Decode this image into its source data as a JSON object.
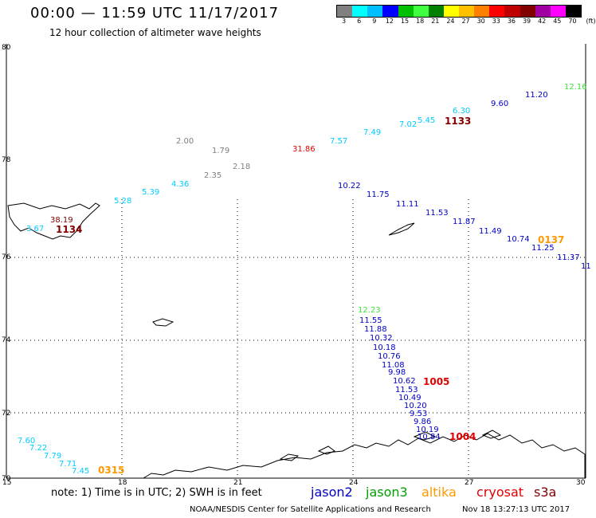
{
  "header": {
    "title": "00:00 — 11:59 UTC 11/17/2017",
    "subtitle": "12 hour collection of altimeter wave heights"
  },
  "legend": {
    "colors": [
      "#808080",
      "#00ffff",
      "#00bfff",
      "#0000ff",
      "#00c000",
      "#40ff40",
      "#008000",
      "#ffff00",
      "#ffc000",
      "#ff8000",
      "#ff0000",
      "#c00000",
      "#800000",
      "#a000a0",
      "#ff00ff",
      "#000000"
    ],
    "ticks": [
      "3",
      "6",
      "9",
      "12",
      "15",
      "18",
      "21",
      "24",
      "27",
      "30",
      "33",
      "36",
      "39",
      "42",
      "45",
      "70",
      "(ft)"
    ]
  },
  "axes": {
    "x_labels": [
      "15",
      "18",
      "21",
      "24",
      "27",
      "30"
    ],
    "y_labels": [
      "80",
      "78",
      "76",
      "74",
      "72",
      "70"
    ]
  },
  "map_data": {
    "colors": {
      "jason2": "#0000c8",
      "jason3": "#00a000",
      "altika": "#ff9900",
      "cryosat": "#e00000",
      "s3a": "#800000",
      "gray": "#808080",
      "cyan": "#00ccff",
      "lightgreen": "#40e040"
    },
    "labels": [
      {
        "t": "2.00",
        "c": "gray"
      },
      {
        "t": "1.79",
        "c": "gray"
      },
      {
        "t": "2.35",
        "c": "gray"
      },
      {
        "t": "2.18",
        "c": "gray"
      },
      {
        "t": "5.28",
        "c": "cyan"
      },
      {
        "t": "5.39",
        "c": "cyan"
      },
      {
        "t": "4.36",
        "c": "cyan"
      },
      {
        "t": "3.67",
        "c": "cyan"
      },
      {
        "t": "7.57",
        "c": "cyan"
      },
      {
        "t": "7.49",
        "c": "cyan"
      },
      {
        "t": "7.02",
        "c": "cyan"
      },
      {
        "t": "5.45",
        "c": "cyan"
      },
      {
        "t": "6.30",
        "c": "cyan"
      },
      {
        "t": "31.86",
        "c": "cryosat"
      },
      {
        "t": "38.19",
        "c": "s3a"
      },
      {
        "t": "9.60",
        "c": "jason2"
      },
      {
        "t": "11.20",
        "c": "jason2"
      },
      {
        "t": "12.16",
        "c": "lightgreen"
      },
      {
        "t": "10.22",
        "c": "jason2"
      },
      {
        "t": "11.75",
        "c": "jason2"
      },
      {
        "t": "11.11",
        "c": "jason2"
      },
      {
        "t": "11.53",
        "c": "jason2"
      },
      {
        "t": "11.87",
        "c": "jason2"
      },
      {
        "t": "11.49",
        "c": "jason2"
      },
      {
        "t": "10.74",
        "c": "jason2"
      },
      {
        "t": "11.25",
        "c": "jason2"
      },
      {
        "t": "11.37",
        "c": "jason2"
      },
      {
        "t": "11",
        "c": "jason2"
      },
      {
        "t": "12.23",
        "c": "lightgreen"
      },
      {
        "t": "11.55",
        "c": "jason2"
      },
      {
        "t": "11.88",
        "c": "jason2"
      },
      {
        "t": "10.32",
        "c": "jason2"
      },
      {
        "t": "10.18",
        "c": "jason2"
      },
      {
        "t": "10.76",
        "c": "jason2"
      },
      {
        "t": "11.08",
        "c": "jason2"
      },
      {
        "t": "9.98",
        "c": "jason2"
      },
      {
        "t": "10.62",
        "c": "jason2"
      },
      {
        "t": "11.53",
        "c": "jason2"
      },
      {
        "t": "10.49",
        "c": "jason2"
      },
      {
        "t": "10.20",
        "c": "jason2"
      },
      {
        "t": "9.53",
        "c": "jason2"
      },
      {
        "t": "9.86",
        "c": "jason2"
      },
      {
        "t": "10.19",
        "c": "jason2"
      },
      {
        "t": "10.84",
        "c": "jason2"
      },
      {
        "t": "7.60",
        "c": "cyan"
      },
      {
        "t": "7.22",
        "c": "cyan"
      },
      {
        "t": "7.79",
        "c": "cyan"
      },
      {
        "t": "7.71",
        "c": "cyan"
      },
      {
        "t": "7.45",
        "c": "cyan"
      }
    ],
    "pass_times": [
      {
        "t": "1133",
        "c": "s3a"
      },
      {
        "t": "1134",
        "c": "s3a"
      },
      {
        "t": "0137",
        "c": "altika"
      },
      {
        "t": "1005",
        "c": "cryosat"
      },
      {
        "t": "1004",
        "c": "cryosat"
      },
      {
        "t": "0315",
        "c": "altika"
      }
    ]
  },
  "footer": {
    "note": "note: 1) Time is in UTC; 2) SWH is in feet",
    "satellites": [
      {
        "name": "jason2",
        "c": "jason2"
      },
      {
        "name": "jason3",
        "c": "jason3"
      },
      {
        "name": "altika",
        "c": "altika"
      },
      {
        "name": "cryosat",
        "c": "cryosat"
      },
      {
        "name": "s3a",
        "c": "s3a"
      }
    ],
    "credit": "NOAA/NESDIS Center for Satellite Applications and Research",
    "timestamp": "Nov 18 13:27:13 UTC 2017"
  }
}
